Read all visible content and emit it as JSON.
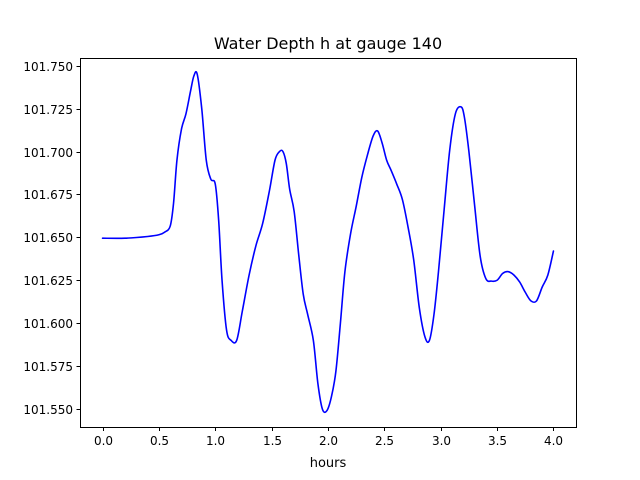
{
  "chart_data": {
    "type": "line",
    "title": "Water Depth h at gauge 140",
    "xlabel": "hours",
    "ylabel": "",
    "xlim": [
      -0.2,
      4.2
    ],
    "ylim": [
      101.5395,
      101.7545
    ],
    "xticks": [
      0.0,
      0.5,
      1.0,
      1.5,
      2.0,
      2.5,
      3.0,
      3.5,
      4.0
    ],
    "xtick_labels": [
      "0.0",
      "0.5",
      "1.0",
      "1.5",
      "2.0",
      "2.5",
      "3.0",
      "3.5",
      "4.0"
    ],
    "yticks": [
      101.55,
      101.575,
      101.6,
      101.625,
      101.65,
      101.675,
      101.7,
      101.725,
      101.75
    ],
    "ytick_labels": [
      "101.550",
      "101.575",
      "101.600",
      "101.625",
      "101.650",
      "101.675",
      "101.700",
      "101.725",
      "101.750"
    ],
    "grid": false,
    "series": [
      {
        "color": "#0000ff",
        "x": [
          0.0,
          0.2,
          0.4,
          0.5,
          0.55,
          0.6,
          0.63,
          0.66,
          0.7,
          0.74,
          0.78,
          0.81,
          0.84,
          0.88,
          0.92,
          0.96,
          1.0,
          1.03,
          1.06,
          1.1,
          1.14,
          1.19,
          1.24,
          1.3,
          1.36,
          1.42,
          1.48,
          1.53,
          1.57,
          1.6,
          1.63,
          1.66,
          1.7,
          1.74,
          1.78,
          1.82,
          1.87,
          1.91,
          1.95,
          1.99,
          2.03,
          2.07,
          2.11,
          2.15,
          2.2,
          2.25,
          2.3,
          2.35,
          2.4,
          2.44,
          2.48,
          2.52,
          2.56,
          2.61,
          2.66,
          2.71,
          2.76,
          2.81,
          2.86,
          2.9,
          2.94,
          2.98,
          3.03,
          3.08,
          3.13,
          3.18,
          3.21,
          3.25,
          3.3,
          3.35,
          3.4,
          3.45,
          3.5,
          3.55,
          3.6,
          3.65,
          3.7,
          3.75,
          3.8,
          3.85,
          3.9,
          3.95,
          4.0
        ],
        "y": [
          101.6495,
          101.6495,
          101.6505,
          101.6515,
          101.653,
          101.6565,
          101.67,
          101.695,
          101.713,
          101.722,
          101.735,
          101.744,
          101.745,
          101.725,
          101.695,
          101.684,
          101.681,
          101.66,
          101.625,
          101.596,
          101.59,
          101.59,
          101.607,
          101.628,
          101.645,
          101.658,
          101.677,
          101.695,
          101.7,
          101.7,
          101.693,
          101.678,
          101.665,
          101.64,
          101.617,
          101.605,
          101.59,
          101.565,
          101.55,
          101.549,
          101.557,
          101.572,
          101.6,
          101.63,
          101.652,
          101.668,
          101.685,
          101.698,
          101.709,
          101.712,
          101.705,
          101.695,
          101.689,
          101.681,
          101.672,
          101.656,
          101.637,
          101.609,
          101.592,
          101.59,
          101.605,
          101.63,
          101.666,
          101.701,
          101.722,
          101.726,
          101.72,
          101.7,
          101.669,
          101.639,
          101.626,
          101.6245,
          101.625,
          101.629,
          101.63,
          101.628,
          101.624,
          101.618,
          101.613,
          101.613,
          101.621,
          101.628,
          101.642
        ]
      }
    ]
  }
}
